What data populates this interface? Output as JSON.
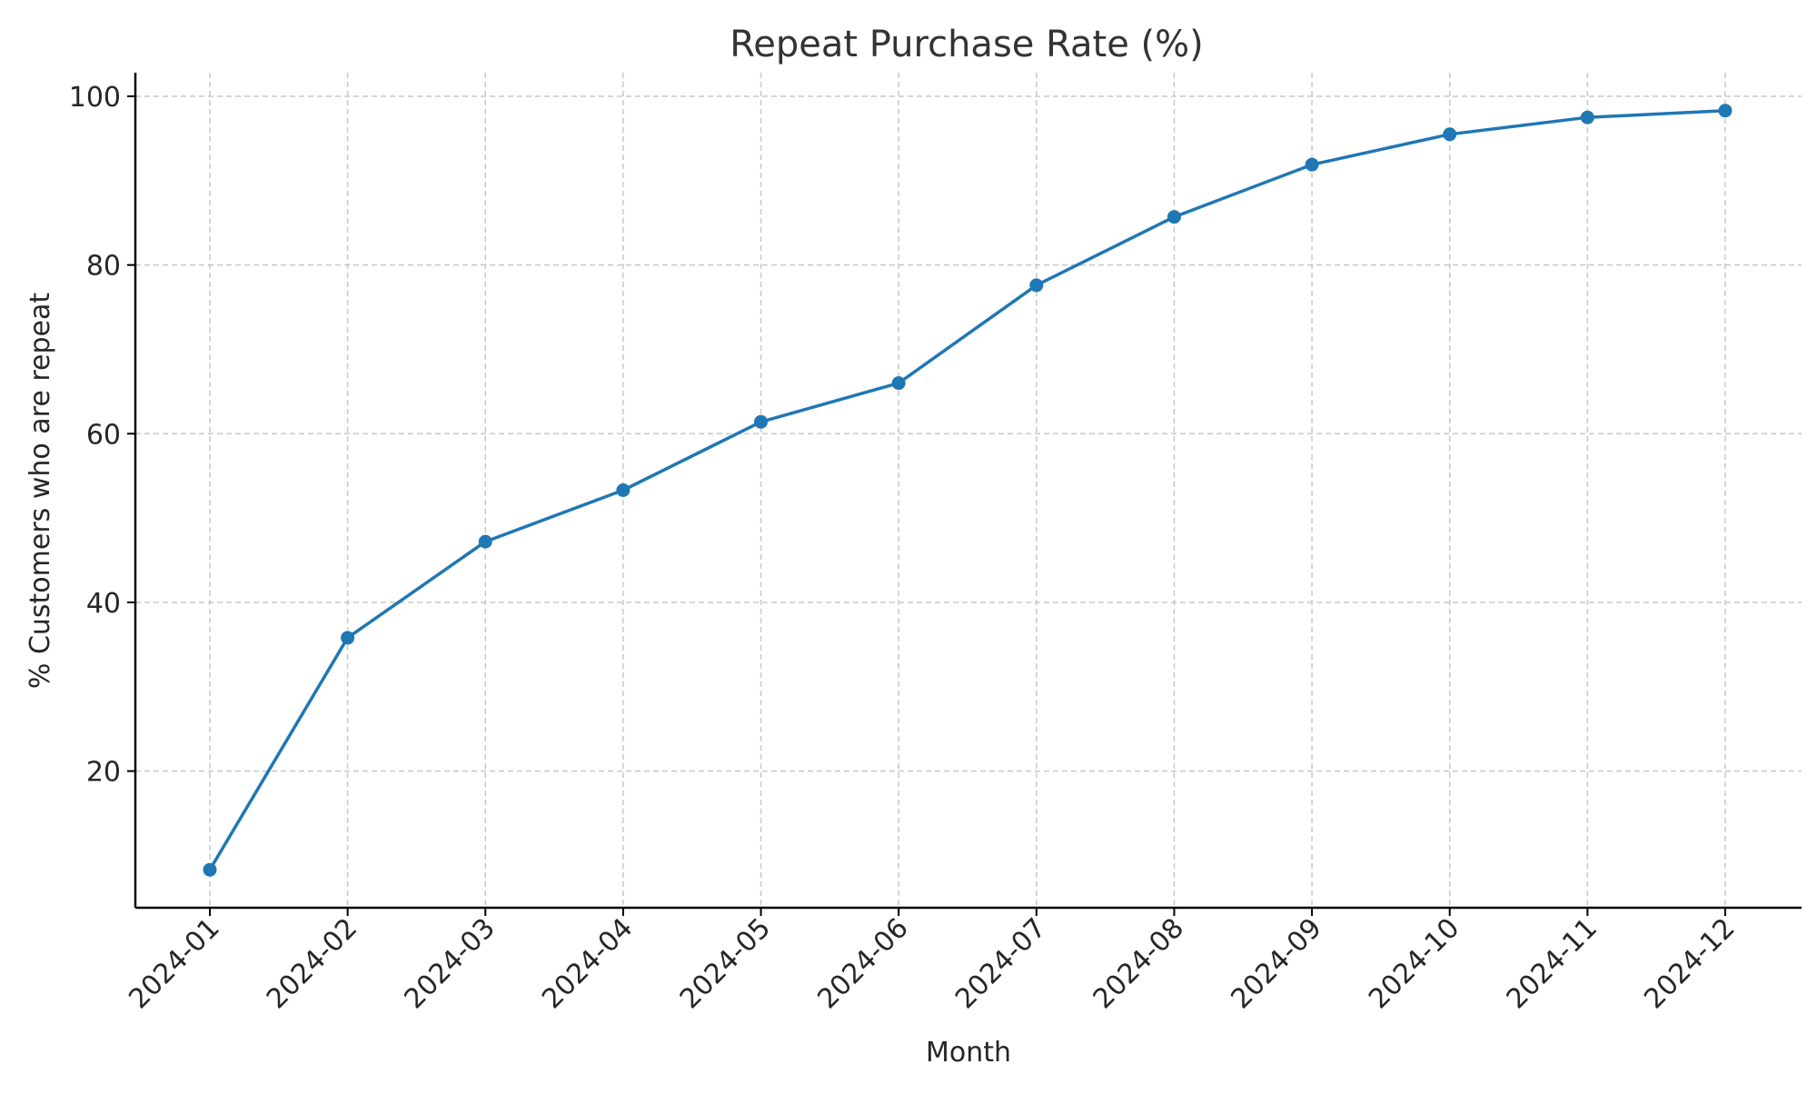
{
  "chart_data": {
    "type": "line",
    "title": "Repeat Purchase Rate (%)",
    "xlabel": "Month",
    "ylabel": "% Customers who are repeat",
    "categories": [
      "2024-01",
      "2024-02",
      "2024-03",
      "2024-04",
      "2024-05",
      "2024-06",
      "2024-07",
      "2024-08",
      "2024-09",
      "2024-10",
      "2024-11",
      "2024-12"
    ],
    "series": [
      {
        "values": [
          8.3,
          35.8,
          47.2,
          53.3,
          61.4,
          66.0,
          77.6,
          85.7,
          91.9,
          95.5,
          97.5,
          98.3
        ],
        "color": "#1f77b4",
        "marker": "circle"
      }
    ],
    "ylim": [
      3.8,
      102.8
    ],
    "yticks": [
      20,
      40,
      60,
      80,
      100
    ],
    "grid": true,
    "legend": "none"
  }
}
